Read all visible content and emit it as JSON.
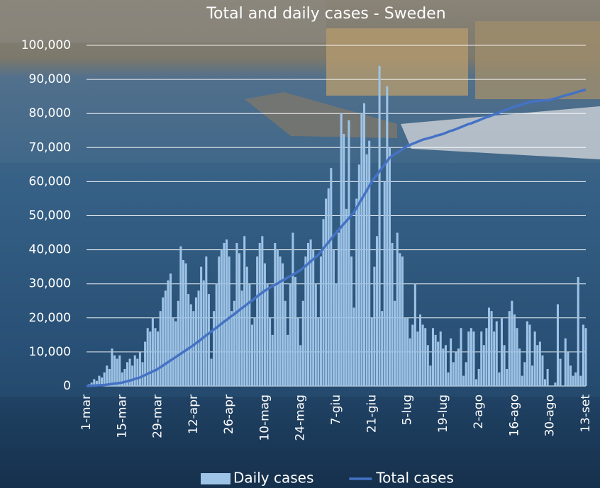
{
  "chart_data": {
    "type": "combo",
    "title": "Total and daily cases - Sweden",
    "categories": [
      "1-mar",
      null,
      null,
      null,
      null,
      null,
      null,
      null,
      null,
      null,
      null,
      null,
      null,
      null,
      "15-mar",
      null,
      null,
      null,
      null,
      null,
      null,
      null,
      null,
      null,
      null,
      null,
      null,
      null,
      "29-mar",
      null,
      null,
      null,
      null,
      null,
      null,
      null,
      null,
      null,
      null,
      null,
      null,
      null,
      "12-apr",
      null,
      null,
      null,
      null,
      null,
      null,
      null,
      null,
      null,
      null,
      null,
      null,
      null,
      "26-apr",
      null,
      null,
      null,
      null,
      null,
      null,
      null,
      null,
      null,
      null,
      null,
      null,
      null,
      "10-mag",
      null,
      null,
      null,
      null,
      null,
      null,
      null,
      null,
      null,
      null,
      null,
      null,
      null,
      "24-mag",
      null,
      null,
      null,
      null,
      null,
      null,
      null,
      null,
      null,
      null,
      null,
      null,
      null,
      "7-giu",
      null,
      null,
      null,
      null,
      null,
      null,
      null,
      null,
      null,
      null,
      null,
      null,
      null,
      "21-giu",
      null,
      null,
      null,
      null,
      null,
      null,
      null,
      null,
      null,
      null,
      null,
      null,
      null,
      "5-lug",
      null,
      null,
      null,
      null,
      null,
      null,
      null,
      null,
      null,
      null,
      null,
      null,
      null,
      "19-lug",
      null,
      null,
      null,
      null,
      null,
      null,
      null,
      null,
      null,
      null,
      null,
      null,
      null,
      "2-ago",
      null,
      null,
      null,
      null,
      null,
      null,
      null,
      null,
      null,
      null,
      null,
      null,
      null,
      "16-ago",
      null,
      null,
      null,
      null,
      null,
      null,
      null,
      null,
      null,
      null,
      null,
      null,
      null,
      "30-ago",
      null,
      null,
      null,
      null,
      null,
      null,
      null,
      null,
      null,
      null,
      null,
      null,
      null,
      "13-set"
    ],
    "series": [
      {
        "name": "Daily cases",
        "type": "bar",
        "color": "#9dc3e6",
        "values": [
          0,
          500,
          1000,
          2000,
          1500,
          3000,
          2500,
          4000,
          6000,
          5000,
          11000,
          9000,
          8000,
          9000,
          4000,
          5000,
          7000,
          8000,
          6000,
          9000,
          8000,
          10000,
          7000,
          13000,
          17000,
          16000,
          20000,
          17000,
          16000,
          22000,
          26000,
          28000,
          31000,
          33000,
          20000,
          19000,
          25000,
          41000,
          37000,
          36000,
          27000,
          24000,
          22000,
          26000,
          28000,
          35000,
          31000,
          38000,
          27000,
          8000,
          22000,
          30000,
          38000,
          40000,
          42000,
          43000,
          38000,
          22000,
          25000,
          42000,
          39000,
          28000,
          44000,
          35000,
          30000,
          18000,
          20000,
          38000,
          42000,
          44000,
          36000,
          30000,
          20000,
          15000,
          42000,
          40000,
          38000,
          36000,
          25000,
          15000,
          30000,
          45000,
          32000,
          20000,
          12000,
          25000,
          38000,
          42000,
          43000,
          40000,
          30000,
          20000,
          38000,
          49000,
          55000,
          58000,
          64000,
          40000,
          30000,
          45000,
          80000,
          74000,
          52000,
          78000,
          38000,
          23000,
          55000,
          65000,
          80000,
          83000,
          68000,
          72000,
          20000,
          35000,
          44000,
          94000,
          22000,
          60000,
          88000,
          70000,
          42000,
          25000,
          45000,
          39000,
          38000,
          20000,
          20000,
          14000,
          18000,
          30000,
          16000,
          21000,
          18000,
          17000,
          12000,
          6000,
          17000,
          15000,
          13000,
          16000,
          11000,
          12000,
          4000,
          14000,
          7000,
          10000,
          11000,
          17000,
          3000,
          7000,
          16000,
          17000,
          16000,
          2000,
          5000,
          16000,
          12000,
          17000,
          23000,
          22000,
          16000,
          19000,
          4000,
          20000,
          12000,
          5000,
          22000,
          25000,
          21000,
          17000,
          11000,
          3000,
          7000,
          19000,
          18000,
          6000,
          16000,
          12000,
          13000,
          9000,
          2000,
          5000,
          0,
          0,
          1000,
          24000,
          8000,
          0,
          14000,
          10000,
          6000,
          3000,
          4000,
          32000,
          3000,
          18000,
          17000
        ]
      },
      {
        "name": "Total cases",
        "type": "line",
        "color": "#4472c4",
        "values": [
          0,
          40,
          90,
          130,
          170,
          220,
          260,
          300,
          400,
          500,
          600,
          700,
          800,
          900,
          1000,
          1200,
          1400,
          1600,
          1800,
          2100,
          2300,
          2500,
          2900,
          3200,
          3600,
          3900,
          4300,
          4600,
          5000,
          5500,
          6000,
          6500,
          7000,
          7500,
          8000,
          8500,
          9000,
          9500,
          10000,
          10500,
          11000,
          11500,
          12000,
          12600,
          13100,
          13700,
          14300,
          14900,
          15400,
          16000,
          16600,
          17100,
          17700,
          18300,
          18900,
          19400,
          20000,
          20600,
          21100,
          21700,
          22300,
          22900,
          23400,
          24000,
          24600,
          25100,
          25700,
          26300,
          26900,
          27400,
          28000,
          28400,
          28900,
          29300,
          29700,
          30100,
          30600,
          31000,
          31400,
          31900,
          32300,
          32700,
          33100,
          33600,
          34000,
          34600,
          35300,
          35900,
          36600,
          37200,
          37900,
          38500,
          39400,
          40400,
          41300,
          42200,
          43100,
          44100,
          45000,
          45900,
          46700,
          47600,
          48400,
          49300,
          50100,
          51000,
          52300,
          53600,
          54900,
          56100,
          57400,
          58700,
          60000,
          61000,
          62000,
          63000,
          64000,
          65000,
          66000,
          67000,
          67500,
          68000,
          68500,
          69000,
          69500,
          70000,
          70500,
          70800,
          71100,
          71400,
          71700,
          72000,
          72300,
          72500,
          72700,
          72900,
          73100,
          73400,
          73600,
          73800,
          74000,
          74300,
          74600,
          74900,
          75100,
          75400,
          75700,
          76000,
          76300,
          76600,
          76900,
          77100,
          77400,
          77700,
          78000,
          78300,
          78600,
          78900,
          79100,
          79400,
          79700,
          80000,
          80300,
          80600,
          80900,
          81100,
          81400,
          81700,
          82000,
          82200,
          82400,
          82600,
          82900,
          83100,
          83300,
          83500,
          83600,
          83600,
          83700,
          83800,
          83900,
          83900,
          84000,
          84200,
          84400,
          84600,
          84900,
          85100,
          85300,
          85500,
          85700,
          85900,
          86100,
          86400,
          86600,
          86800,
          87000
        ]
      }
    ],
    "ylim": [
      0,
      100000
    ],
    "yticks": [
      0,
      {
        "value": 10000,
        "label": "10,000"
      },
      {
        "value": 20000,
        "label": "20,000"
      },
      {
        "value": 30000,
        "label": "30,000"
      },
      {
        "value": 40000,
        "label": "40,000"
      },
      {
        "value": 50000,
        "label": "50,000"
      },
      {
        "value": 60000,
        "label": "60,000"
      },
      {
        "value": 70000,
        "label": "70,000"
      },
      {
        "value": 80000,
        "label": "80,000"
      },
      {
        "value": 90000,
        "label": "90,000"
      },
      {
        "value": 100000,
        "label": "100,000"
      }
    ],
    "grid": true,
    "legend": "bottom"
  }
}
